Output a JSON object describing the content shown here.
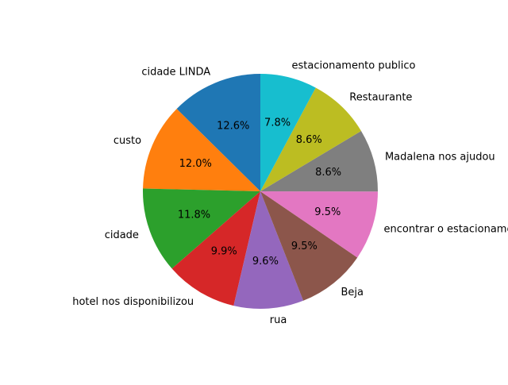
{
  "chart_data": {
    "type": "pie",
    "title": "",
    "start_angle_deg": 90,
    "direction": "counterclockwise",
    "slices": [
      {
        "label": "cidade LINDA",
        "value": 12.6,
        "pct_label": "12.6%",
        "color": "#1f77b4"
      },
      {
        "label": "custo",
        "value": 12.0,
        "pct_label": "12.0%",
        "color": "#ff7f0e"
      },
      {
        "label": "cidade",
        "value": 11.8,
        "pct_label": "11.8%",
        "color": "#2ca02c"
      },
      {
        "label": "hotel nos disponibilizou",
        "value": 9.9,
        "pct_label": "9.9%",
        "color": "#d62728"
      },
      {
        "label": "rua",
        "value": 9.6,
        "pct_label": "9.6%",
        "color": "#9467bd"
      },
      {
        "label": "Beja",
        "value": 9.5,
        "pct_label": "9.5%",
        "color": "#8c564b"
      },
      {
        "label": "encontrar o estacionamento",
        "value": 9.5,
        "pct_label": "9.5%",
        "color": "#e377c2"
      },
      {
        "label": "Madalena nos ajudou",
        "value": 8.6,
        "pct_label": "8.6%",
        "color": "#7f7f7f"
      },
      {
        "label": "Restaurante",
        "value": 8.6,
        "pct_label": "8.6%",
        "color": "#bcbd22"
      },
      {
        "label": "estacionamento publico",
        "value": 7.8,
        "pct_label": "7.8%",
        "color": "#17becf"
      }
    ]
  }
}
